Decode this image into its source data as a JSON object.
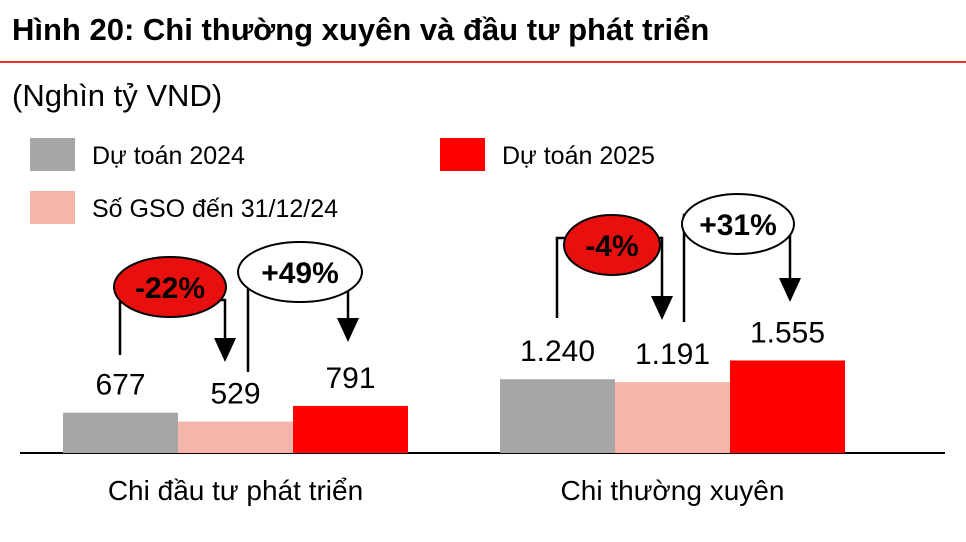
{
  "chart_data": {
    "type": "bar",
    "title": "Hình 20: Chi thường xuyên và đầu tư phát triển",
    "subtitle": "(Nghìn tỷ VND)",
    "categories": [
      "Chi đầu tư phát triển",
      "Chi thường xuyên"
    ],
    "series": [
      {
        "name": "Dự toán 2024",
        "color": "#a6a6a6",
        "values": [
          677,
          1240
        ],
        "value_labels": [
          "677",
          "1.240"
        ]
      },
      {
        "name": "Số GSO đến 31/12/24",
        "color": "#f6b5aa",
        "values": [
          529,
          1191
        ],
        "value_labels": [
          "529",
          "1.191"
        ]
      },
      {
        "name": "Dự toán 2025",
        "color": "#ff0000",
        "values": [
          791,
          1555
        ],
        "value_labels": [
          "791",
          "1.555"
        ]
      }
    ],
    "annotations": [
      "-22%",
      "+49%",
      "-4%",
      "+31%"
    ]
  }
}
